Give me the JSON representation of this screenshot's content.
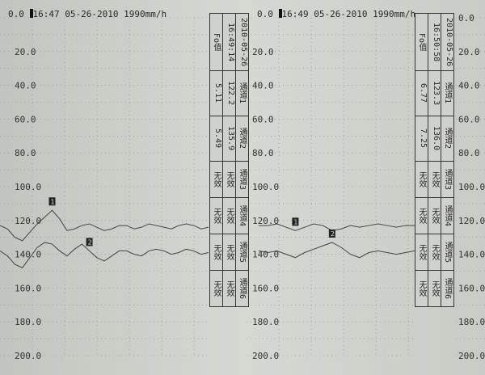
{
  "chart_data": {
    "type": "line",
    "ylim": [
      0,
      200
    ],
    "yticks": [
      "0.0",
      "20.0",
      "40.0",
      "60.0",
      "80.0",
      "100.0",
      "120.0",
      "140.0",
      "160.0",
      "180.0",
      "200.0"
    ],
    "grid": true,
    "panels": [
      {
        "header": "16:47 05-26-2010 1990mm/h",
        "header_zero": "0.0",
        "series": [
          {
            "name": "1",
            "values": [
              123,
              125,
              130,
              132,
              127,
              122,
              118,
              114,
              119,
              126,
              125,
              123,
              122,
              124,
              126,
              125,
              123,
              123,
              125,
              124,
              122,
              123,
              124,
              125,
              123,
              122,
              123,
              125,
              124
            ]
          },
          {
            "name": "2",
            "values": [
              138,
              141,
              146,
              148,
              142,
              136,
              133,
              134,
              138,
              141,
              137,
              134,
              138,
              142,
              144,
              141,
              138,
              138,
              140,
              141,
              138,
              137,
              138,
              140,
              139,
              137,
              138,
              140,
              139
            ]
          }
        ]
      },
      {
        "header": "16:49 05-26-2010 1990mm/h",
        "header_zero": "0.0",
        "series": [
          {
            "name": "1",
            "values": [
              123,
              123,
              122,
              124,
              126,
              124,
              122,
              123,
              126,
              125,
              123,
              124,
              123,
              122,
              123,
              124,
              123,
              123
            ]
          },
          {
            "name": "2",
            "values": [
              138,
              139,
              138,
              140,
              142,
              139,
              137,
              135,
              133,
              136,
              140,
              142,
              139,
              138,
              139,
              140,
              139,
              138
            ]
          }
        ]
      }
    ]
  },
  "tables": [
    {
      "date": "2010-05-26",
      "time": "16:49:14",
      "fo": "Fo值",
      "rows": [
        [
          "通道1",
          "122.2",
          "5.11"
        ],
        [
          "通道2",
          "135.9",
          "5.49"
        ],
        [
          "通道3",
          "无效",
          "无效"
        ],
        [
          "通道4",
          "无效",
          "无效"
        ],
        [
          "通道5",
          "无效",
          "无效"
        ],
        [
          "通道6",
          "无效",
          "无效"
        ]
      ]
    },
    {
      "date": "2010-05-26",
      "time": "16:50:58",
      "fo": "Fo值",
      "rows": [
        [
          "通道1",
          "123.3",
          "6.77"
        ],
        [
          "通道2",
          "136.0",
          "7.25"
        ],
        [
          "通道3",
          "无效",
          "无效"
        ],
        [
          "通道4",
          "无效",
          "无效"
        ],
        [
          "通道5",
          "无效",
          "无效"
        ],
        [
          "通道6",
          "无效",
          "无效"
        ]
      ]
    }
  ]
}
